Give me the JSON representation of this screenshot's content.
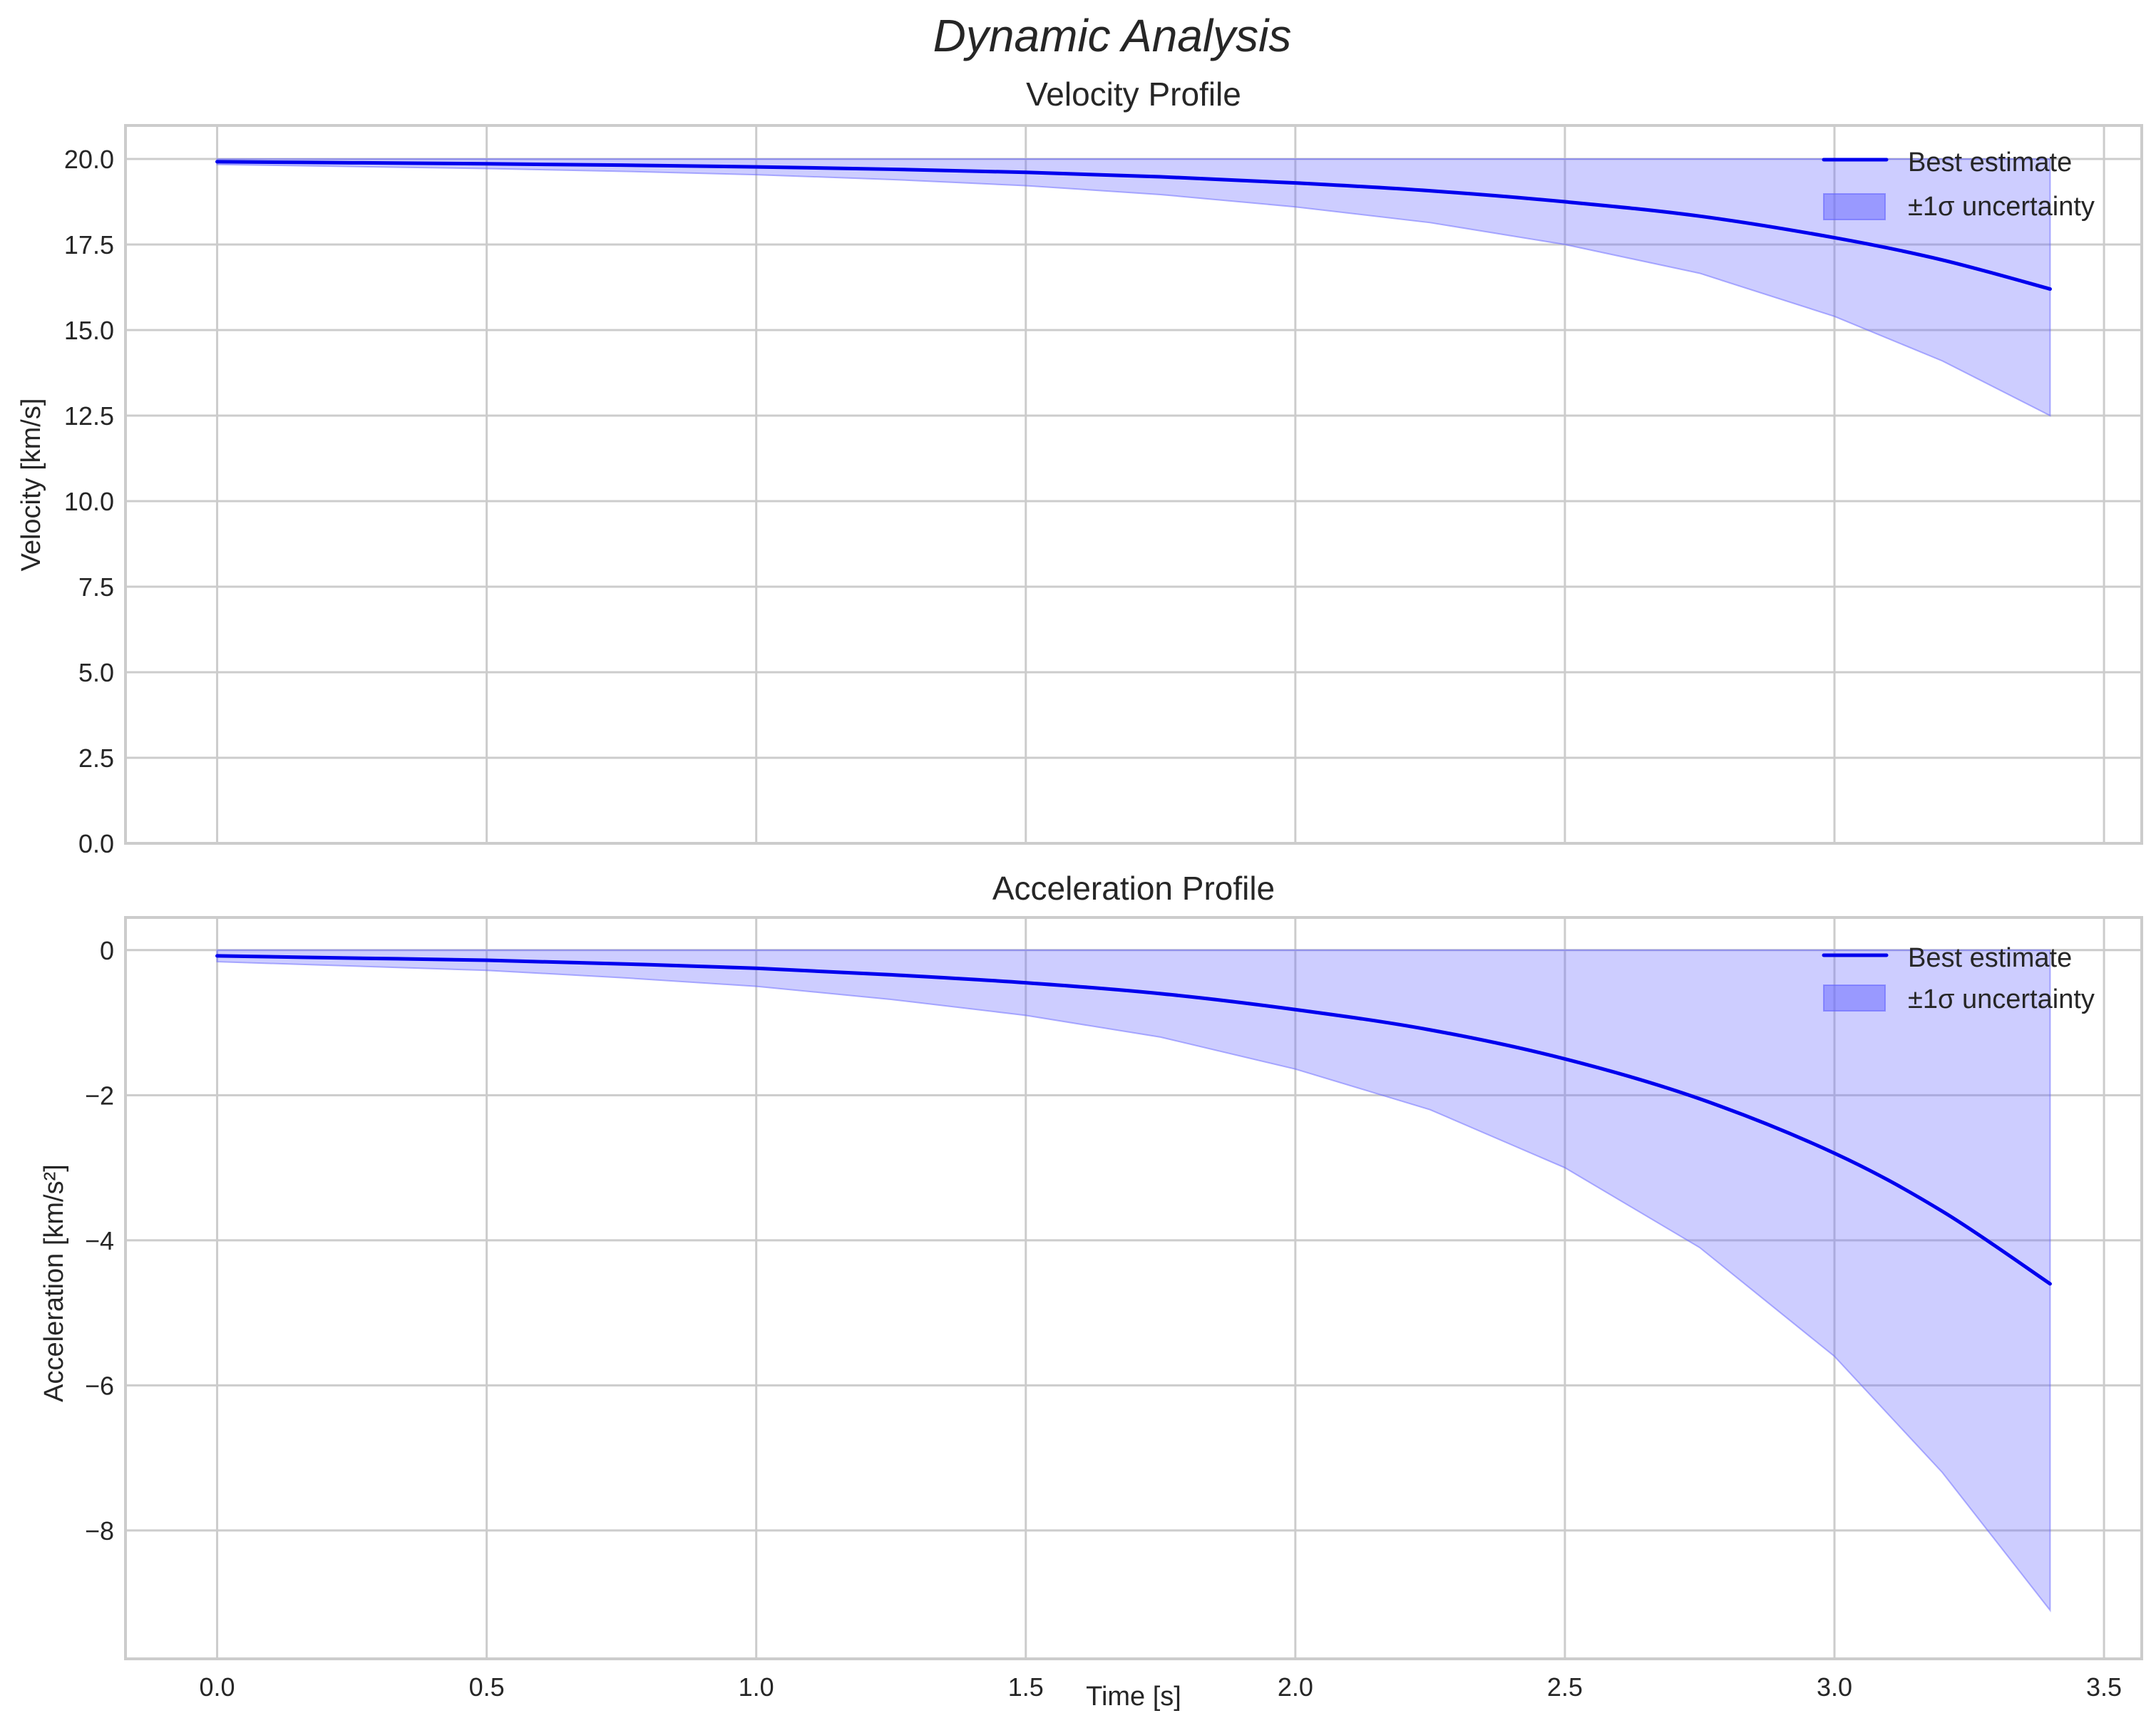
{
  "figure": {
    "title": "Dynamic Analysis"
  },
  "colors": {
    "line": "#0000ee",
    "band_fill": "#6666ff",
    "band_opacity": 0.33,
    "grid": "#cccccc",
    "text": "#262626"
  },
  "chart_data": [
    {
      "type": "line",
      "title": "Velocity Profile",
      "xlabel": "",
      "ylabel": "Velocity [km/s]",
      "xlim": [
        -0.17,
        3.57
      ],
      "ylim": [
        0,
        20.98
      ],
      "xticks": [
        0.0,
        0.5,
        1.0,
        1.5,
        2.0,
        2.5,
        3.0,
        3.5
      ],
      "xtick_labels_visible": false,
      "yticks": [
        0.0,
        2.5,
        5.0,
        7.5,
        10.0,
        12.5,
        15.0,
        17.5,
        20.0
      ],
      "ytick_labels": [
        "0.0",
        "2.5",
        "5.0",
        "7.5",
        "10.0",
        "12.5",
        "15.0",
        "17.5",
        "20.0"
      ],
      "grid": true,
      "legend_position": "upper right",
      "x": [
        0.0,
        0.25,
        0.5,
        0.75,
        1.0,
        1.25,
        1.5,
        1.75,
        2.0,
        2.25,
        2.5,
        2.75,
        3.0,
        3.2,
        3.4
      ],
      "series": [
        {
          "name": "Best estimate",
          "kind": "line",
          "values": [
            19.92,
            19.89,
            19.86,
            19.82,
            19.77,
            19.7,
            19.61,
            19.48,
            19.3,
            19.07,
            18.75,
            18.33,
            17.7,
            17.05,
            16.2
          ]
        },
        {
          "name": "±1σ uncertainty",
          "kind": "band",
          "lower": [
            19.84,
            19.78,
            19.72,
            19.64,
            19.54,
            19.4,
            19.22,
            18.96,
            18.6,
            18.14,
            17.5,
            16.66,
            15.4,
            14.1,
            12.5
          ],
          "upper": [
            20.0,
            20.0,
            20.0,
            20.0,
            20.0,
            20.0,
            20.0,
            20.0,
            20.0,
            20.0,
            20.0,
            20.0,
            20.0,
            20.0,
            20.0
          ]
        }
      ]
    },
    {
      "type": "line",
      "title": "Acceleration Profile",
      "xlabel": "Time [s]",
      "ylabel": "Acceleration [km/s²]",
      "xlim": [
        -0.17,
        3.57
      ],
      "ylim": [
        -9.77,
        0.45
      ],
      "xticks": [
        0.0,
        0.5,
        1.0,
        1.5,
        2.0,
        2.5,
        3.0,
        3.5
      ],
      "xtick_labels": [
        "0.0",
        "0.5",
        "1.0",
        "1.5",
        "2.0",
        "2.5",
        "3.0",
        "3.5"
      ],
      "yticks": [
        0,
        -2,
        -4,
        -6,
        -8
      ],
      "ytick_labels": [
        "0",
        "−2",
        "−4",
        "−6",
        "−8"
      ],
      "grid": true,
      "legend_position": "upper right",
      "x": [
        0.0,
        0.25,
        0.5,
        0.75,
        1.0,
        1.25,
        1.5,
        1.75,
        2.0,
        2.25,
        2.5,
        2.75,
        3.0,
        3.2,
        3.4
      ],
      "series": [
        {
          "name": "Best estimate",
          "kind": "line",
          "values": [
            -0.08,
            -0.11,
            -0.14,
            -0.19,
            -0.25,
            -0.34,
            -0.45,
            -0.6,
            -0.82,
            -1.1,
            -1.5,
            -2.05,
            -2.8,
            -3.6,
            -4.6
          ]
        },
        {
          "name": "±1σ uncertainty",
          "kind": "band",
          "lower": [
            -0.16,
            -0.22,
            -0.28,
            -0.38,
            -0.5,
            -0.68,
            -0.9,
            -1.2,
            -1.64,
            -2.2,
            -3.0,
            -4.1,
            -5.6,
            -7.2,
            -9.1
          ],
          "upper": [
            0.0,
            0.0,
            0.0,
            0.0,
            0.0,
            0.0,
            0.0,
            0.0,
            0.0,
            0.0,
            0.0,
            0.0,
            0.0,
            0.0,
            0.0
          ]
        }
      ]
    }
  ],
  "legend": {
    "line_label": "Best estimate",
    "band_label": "±1σ uncertainty"
  }
}
